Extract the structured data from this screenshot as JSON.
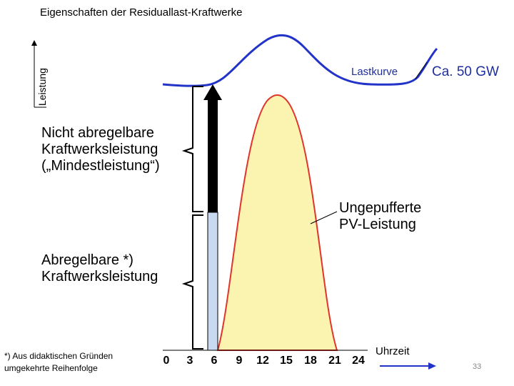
{
  "title": "Eigenschaften der Residuallast-Kraftwerke",
  "y_axis_label": "Leistung",
  "load_curve_label": "Lastkurve",
  "capacity_label": "Ca. 50 GW",
  "must_run_label": [
    "Nicht abregelbare",
    "Kraftwerksleistung",
    "(„Mindestleistung“)"
  ],
  "pv_label": [
    "Ungepufferte",
    "PV-Leistung"
  ],
  "dispatchable_label": [
    "Abregelbare *)",
    "Kraftwerksleistung"
  ],
  "footnote": [
    "*) Aus didaktischen Gründen",
    "umgekehrte Reihenfolge"
  ],
  "time_axis_label": "Uhrzeit",
  "time_ticks": [
    "0",
    "3",
    "6",
    "9",
    "12",
    "15",
    "18",
    "21",
    "24"
  ],
  "page_number": "33",
  "colors": {
    "load_curve": "#2233c8",
    "pv_fill": "#fbf3b0",
    "pv_stroke": "#e0352b",
    "must_run_bar": "#000000",
    "dispatchable_bar": "#c9d9ef",
    "text_blue": "#1f2f9a",
    "arrow": "#2233c8"
  }
}
